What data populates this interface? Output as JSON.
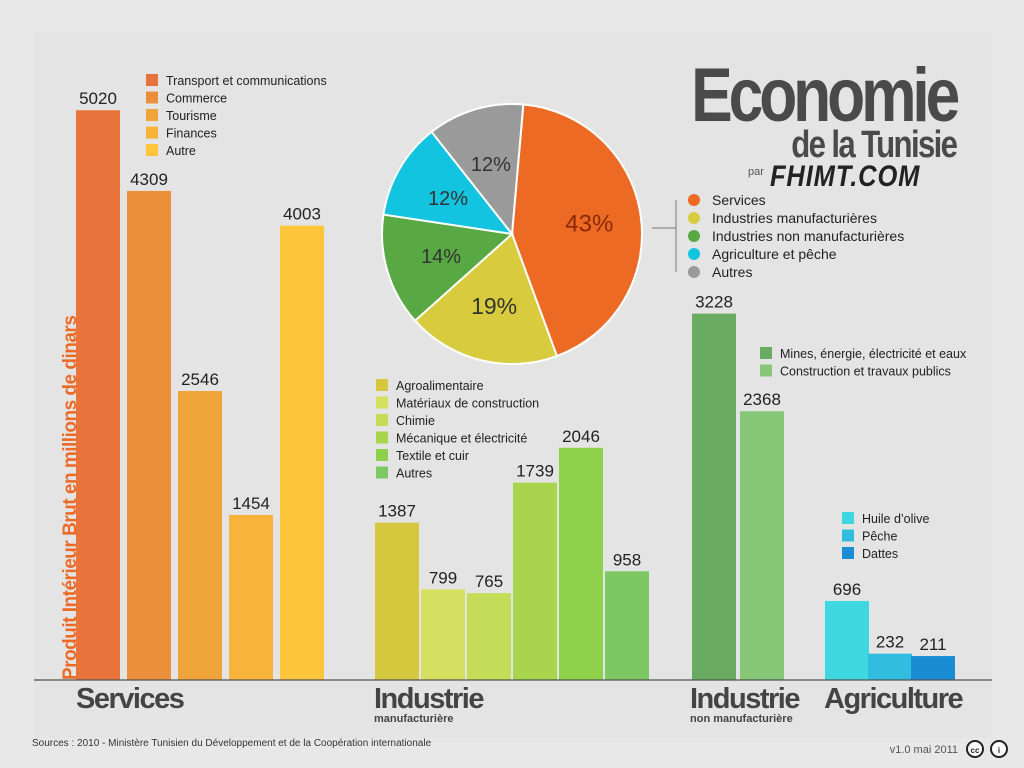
{
  "title": {
    "main": "Economie",
    "sub": "de la Tunisie",
    "par": "par",
    "brand": "FHIMT.COM"
  },
  "ylabel": "Produit Intérieur Brut en millions de dinars",
  "source": "Sources : 2010 - Ministère Tunisien du Développement et de la Coopération internationale",
  "version": "v1.0 mai 2011",
  "license_icons": [
    "creative-commons-icon",
    "attribution-icon"
  ],
  "chart_data": [
    {
      "type": "bar",
      "group": "Services",
      "group_sub": "",
      "categories": [
        "Transport et communications",
        "Commerce",
        "Tourisme",
        "Finances",
        "Autre"
      ],
      "values": [
        5020,
        4309,
        2546,
        1454,
        4003
      ],
      "colors": [
        "#e8743b",
        "#ec8f3a",
        "#f0a53a",
        "#f8b43a",
        "#fcc53a"
      ]
    },
    {
      "type": "bar",
      "group": "Industrie",
      "group_sub": "manufacturière",
      "categories": [
        "Agroalimentaire",
        "Matériaux de construction",
        "Chimie",
        "Mécanique et électricité",
        "Textile et cuir",
        "Autres"
      ],
      "values": [
        1387,
        799,
        765,
        1739,
        2046,
        958
      ],
      "colors": [
        "#d6c83e",
        "#d6e060",
        "#c4dc58",
        "#a8d44e",
        "#8ed04a",
        "#7ec864"
      ]
    },
    {
      "type": "bar",
      "group": "Industrie",
      "group_sub": "non manufacturière",
      "categories": [
        "Mines, énergie, électricité et eaux",
        "Construction et travaux publics"
      ],
      "values": [
        3228,
        2368
      ],
      "colors": [
        "#6aab62",
        "#86c878"
      ]
    },
    {
      "type": "bar",
      "group": "Agriculture",
      "group_sub": "",
      "categories": [
        "Huile d’olive",
        "Pêche",
        "Dattes"
      ],
      "values": [
        696,
        232,
        211
      ],
      "colors": [
        "#40d8e0",
        "#30bde0",
        "#1a8cd4"
      ]
    },
    {
      "type": "pie",
      "categories": [
        "Services",
        "Industries manufacturières",
        "Industries non manufacturières",
        "Agriculture et pêche",
        "Autres"
      ],
      "values": [
        43,
        19,
        14,
        12,
        12
      ],
      "labels": [
        "43%",
        "19%",
        "14%",
        "12%",
        "12%"
      ],
      "colors": [
        "#ec6a24",
        "#d8cc3e",
        "#58a844",
        "#12c4e0",
        "#9a9a9a"
      ]
    }
  ]
}
